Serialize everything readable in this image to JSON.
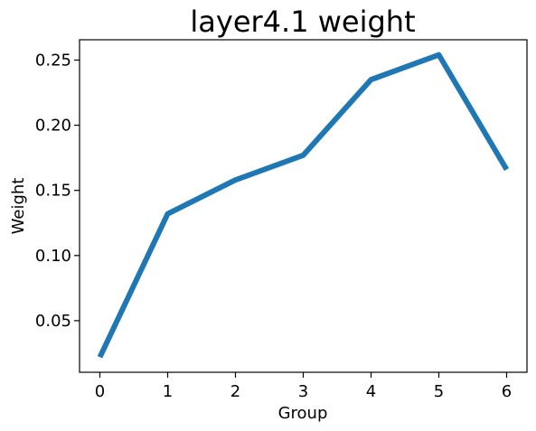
{
  "chart_data": {
    "type": "line",
    "title": "layer4.1 weight",
    "xlabel": "Group",
    "ylabel": "Weight",
    "x": [
      0,
      1,
      2,
      3,
      4,
      5,
      6
    ],
    "series": [
      {
        "values": [
          0.022,
          0.132,
          0.158,
          0.177,
          0.235,
          0.254,
          0.166
        ]
      }
    ],
    "xticks": [
      0,
      1,
      2,
      3,
      4,
      5,
      6
    ],
    "xtick_labels": [
      "0",
      "1",
      "2",
      "3",
      "4",
      "5",
      "6"
    ],
    "yticks": [
      0.05,
      0.1,
      0.15,
      0.2,
      0.25
    ],
    "ytick_labels": [
      "0.05",
      "0.10",
      "0.15",
      "0.20",
      "0.25"
    ],
    "xlim": [
      -0.3,
      6.3
    ],
    "ylim": [
      0.0104,
      0.2656
    ],
    "grid": false,
    "line_color": "#1f77b4"
  }
}
